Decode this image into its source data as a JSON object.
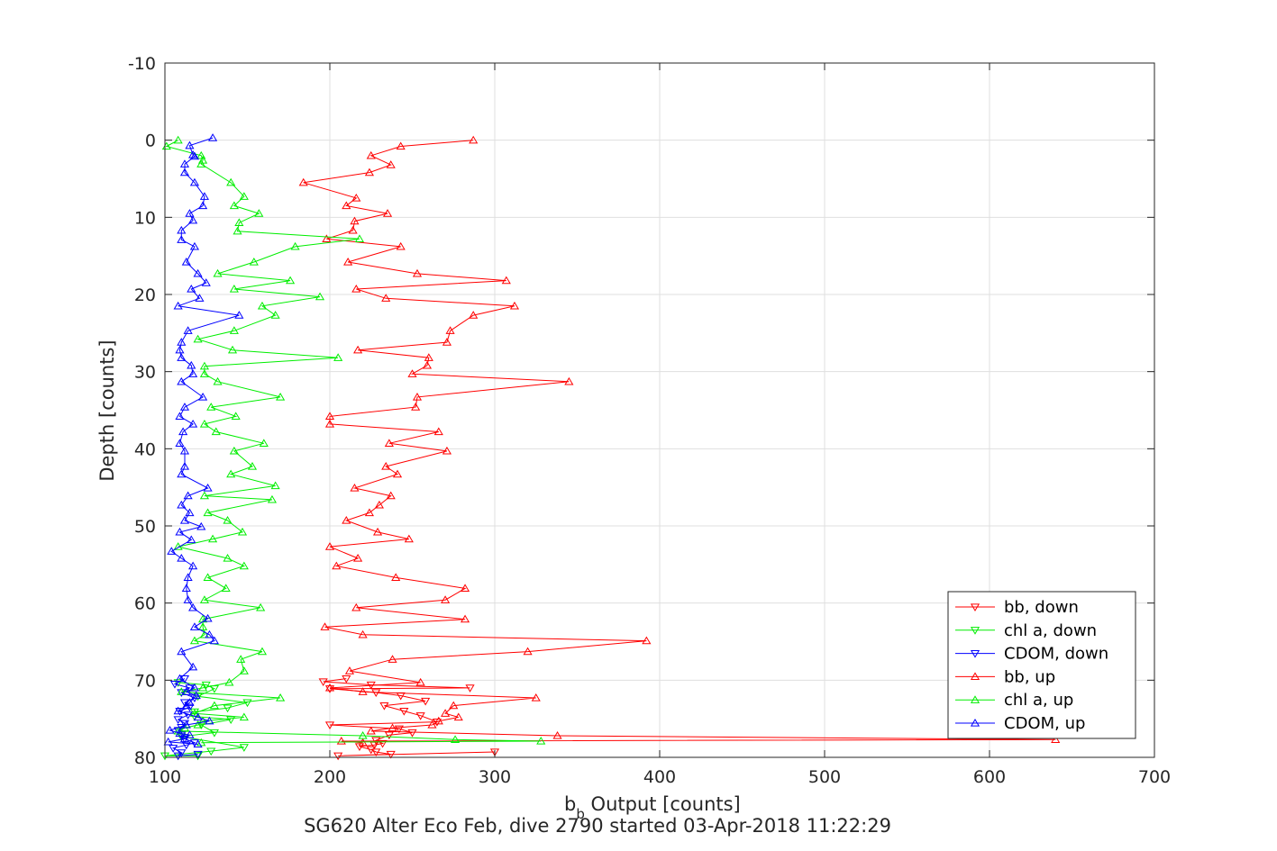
{
  "chart_data": {
    "type": "line",
    "title": "SG620 Alter Eco Feb, dive 2790 started 03-Apr-2018 11:22:29",
    "xlabel_main": "b",
    "xlabel_sub": "b",
    "xlabel_rest": " Output [counts]",
    "ylabel": "Depth [counts]",
    "xlim": [
      100,
      700
    ],
    "ylim": [
      -10,
      80
    ],
    "y_reversed": true,
    "x_ticks": [
      "100",
      "200",
      "300",
      "400",
      "500",
      "600",
      "700"
    ],
    "y_ticks": [
      "-10",
      "0",
      "10",
      "20",
      "30",
      "40",
      "50",
      "60",
      "70",
      "80"
    ],
    "grid": true,
    "legend_position": "bottom-right",
    "series": [
      {
        "name": "bb, down",
        "color": "#ff0000",
        "marker": "triangle-down",
        "points": [
          [
            300,
            79.3
          ],
          [
            205,
            79.8
          ],
          [
            237,
            79.6
          ],
          [
            228,
            79.3
          ],
          [
            225,
            79
          ],
          [
            218,
            78.6
          ],
          [
            227,
            78.4
          ],
          [
            232,
            78.2
          ],
          [
            228,
            77.8
          ],
          [
            236,
            77.1
          ],
          [
            250,
            76.8
          ],
          [
            242,
            76.3
          ],
          [
            200,
            75.8
          ],
          [
            265,
            75.4
          ],
          [
            255,
            74.6
          ],
          [
            245,
            74.0
          ],
          [
            233,
            73.3
          ],
          [
            258,
            72.7
          ],
          [
            243,
            72.0
          ],
          [
            228,
            71.6
          ],
          [
            200,
            71.1
          ],
          [
            285,
            71.0
          ],
          [
            225,
            70.6
          ],
          [
            196,
            70.2
          ],
          [
            210,
            69.8
          ]
        ]
      },
      {
        "name": "chl a, down",
        "color": "#00ee00",
        "marker": "triangle-down",
        "points": [
          [
            120,
            79.8
          ],
          [
            100,
            79.8
          ],
          [
            128,
            79.2
          ],
          [
            148,
            78.7
          ],
          [
            110,
            77.3
          ],
          [
            130,
            76.8
          ],
          [
            122,
            75.8
          ],
          [
            140,
            75.1
          ],
          [
            118,
            74.7
          ],
          [
            118,
            74.1
          ],
          [
            138,
            73.6
          ],
          [
            150,
            72.9
          ],
          [
            120,
            72.1
          ],
          [
            130,
            71.1
          ],
          [
            125,
            70.6
          ],
          [
            108,
            70.3
          ]
        ]
      },
      {
        "name": "CDOM, down",
        "color": "#0000ff",
        "marker": "triangle-down",
        "points": [
          [
            120,
            79.6
          ],
          [
            108,
            79.8
          ],
          [
            110,
            79.4
          ],
          [
            105,
            78.8
          ],
          [
            113,
            78.4
          ],
          [
            118,
            78.1
          ],
          [
            112,
            77.6
          ],
          [
            110,
            77.1
          ],
          [
            108,
            76.5
          ],
          [
            110,
            76.1
          ],
          [
            112,
            75.6
          ],
          [
            108,
            75.1
          ],
          [
            114,
            74.5
          ],
          [
            109,
            74.0
          ],
          [
            115,
            73.5
          ],
          [
            112,
            72.9
          ],
          [
            118,
            72.3
          ],
          [
            110,
            71.6
          ],
          [
            115,
            71.0
          ],
          [
            106,
            70.5
          ],
          [
            112,
            69.8
          ]
        ]
      },
      {
        "name": "bb, up",
        "color": "#ff0000",
        "marker": "triangle-up",
        "points": [
          [
            287,
            0
          ],
          [
            243,
            0.8
          ],
          [
            225,
            2
          ],
          [
            237,
            3.2
          ],
          [
            224,
            4.2
          ],
          [
            184,
            5.5
          ],
          [
            216,
            7.5
          ],
          [
            210,
            8.5
          ],
          [
            235,
            9.5
          ],
          [
            215,
            10.5
          ],
          [
            214,
            11.7
          ],
          [
            198,
            12.8
          ],
          [
            243,
            13.8
          ],
          [
            211,
            15.8
          ],
          [
            253,
            17.3
          ],
          [
            307,
            18.2
          ],
          [
            216,
            19.3
          ],
          [
            234,
            20.5
          ],
          [
            312,
            21.5
          ],
          [
            287,
            22.7
          ],
          [
            273,
            24.7
          ],
          [
            271,
            26.2
          ],
          [
            217,
            27.2
          ],
          [
            260,
            28.2
          ],
          [
            259,
            29.2
          ],
          [
            250,
            30.3
          ],
          [
            345,
            31.3
          ],
          [
            253,
            33.3
          ],
          [
            252,
            34.6
          ],
          [
            200,
            35.8
          ],
          [
            200,
            36.8
          ],
          [
            266,
            37.8
          ],
          [
            236,
            39.3
          ],
          [
            271,
            40.3
          ],
          [
            234,
            42.3
          ],
          [
            241,
            43.3
          ],
          [
            215,
            45.1
          ],
          [
            237,
            46.1
          ],
          [
            230,
            47.3
          ],
          [
            224,
            48.3
          ],
          [
            210,
            49.3
          ],
          [
            229,
            50.8
          ],
          [
            248,
            51.7
          ],
          [
            200,
            52.7
          ],
          [
            217,
            54.2
          ],
          [
            204,
            55.2
          ],
          [
            240,
            56.7
          ],
          [
            282,
            58.1
          ],
          [
            270,
            59.6
          ],
          [
            216,
            60.6
          ],
          [
            282,
            62.1
          ],
          [
            197,
            63.1
          ],
          [
            220,
            64.1
          ],
          [
            392,
            64.9
          ],
          [
            320,
            66.3
          ],
          [
            238,
            67.3
          ],
          [
            212,
            68.8
          ],
          [
            255,
            70.3
          ],
          [
            200,
            71.0
          ],
          [
            220,
            71.5
          ],
          [
            325,
            72.3
          ],
          [
            275,
            73.3
          ],
          [
            270,
            74.3
          ],
          [
            278,
            74.8
          ],
          [
            266,
            75.3
          ],
          [
            262,
            75.8
          ],
          [
            238,
            76.2
          ],
          [
            225,
            76.6
          ],
          [
            338,
            77.2
          ],
          [
            640,
            77.7
          ],
          [
            207,
            77.9
          ],
          [
            220,
            78.1
          ]
        ]
      },
      {
        "name": "chl a, up",
        "color": "#00ee00",
        "marker": "triangle-up",
        "points": [
          [
            108,
            0
          ],
          [
            101,
            0.8
          ],
          [
            122,
            2
          ],
          [
            123,
            2.6
          ],
          [
            122,
            3.1
          ],
          [
            140,
            5.5
          ],
          [
            148,
            7.3
          ],
          [
            142,
            8.5
          ],
          [
            157,
            9.5
          ],
          [
            145,
            10.7
          ],
          [
            144,
            11.8
          ],
          [
            218,
            12.8
          ],
          [
            179,
            13.8
          ],
          [
            154,
            15.8
          ],
          [
            132,
            17.3
          ],
          [
            176,
            18.2
          ],
          [
            142,
            19.3
          ],
          [
            194,
            20.3
          ],
          [
            159,
            21.5
          ],
          [
            167,
            22.7
          ],
          [
            142,
            24.7
          ],
          [
            120,
            25.8
          ],
          [
            141,
            27.2
          ],
          [
            205,
            28.2
          ],
          [
            124,
            29.3
          ],
          [
            124,
            30.3
          ],
          [
            132,
            31.3
          ],
          [
            170,
            33.3
          ],
          [
            128,
            34.6
          ],
          [
            143,
            35.8
          ],
          [
            124,
            36.8
          ],
          [
            131,
            37.8
          ],
          [
            160,
            39.3
          ],
          [
            142,
            40.3
          ],
          [
            153,
            42.3
          ],
          [
            140,
            43.3
          ],
          [
            167,
            44.8
          ],
          [
            124,
            46.1
          ],
          [
            165,
            46.6
          ],
          [
            126,
            48.3
          ],
          [
            138,
            49.3
          ],
          [
            147,
            50.8
          ],
          [
            129,
            51.7
          ],
          [
            108,
            52.7
          ],
          [
            138,
            54.2
          ],
          [
            148,
            55.2
          ],
          [
            126,
            56.7
          ],
          [
            137,
            58.1
          ],
          [
            124,
            59.6
          ],
          [
            158,
            60.6
          ],
          [
            123,
            62.1
          ],
          [
            123,
            63.1
          ],
          [
            124,
            64.1
          ],
          [
            118,
            64.9
          ],
          [
            159,
            66.3
          ],
          [
            146,
            67.3
          ],
          [
            148,
            68.8
          ],
          [
            139,
            70.3
          ],
          [
            123,
            71.0
          ],
          [
            110,
            71.5
          ],
          [
            170,
            72.3
          ],
          [
            130,
            73.3
          ],
          [
            118,
            74.3
          ],
          [
            148,
            74.8
          ],
          [
            123,
            75.3
          ],
          [
            120,
            75.8
          ],
          [
            112,
            76.2
          ],
          [
            108,
            76.6
          ],
          [
            220,
            77.2
          ],
          [
            276,
            77.7
          ],
          [
            328,
            77.9
          ],
          [
            122,
            78.1
          ]
        ]
      },
      {
        "name": "CDOM, up",
        "color": "#0000ff",
        "marker": "triangle-up",
        "points": [
          [
            129,
            -0.3
          ],
          [
            115,
            0.7
          ],
          [
            117,
            1.9
          ],
          [
            118,
            2.1
          ],
          [
            112,
            3.1
          ],
          [
            112,
            4.2
          ],
          [
            118,
            5.5
          ],
          [
            124,
            7.3
          ],
          [
            123,
            8.5
          ],
          [
            115,
            9.5
          ],
          [
            117,
            10.4
          ],
          [
            110,
            11.7
          ],
          [
            110,
            12.9
          ],
          [
            118,
            13.8
          ],
          [
            113,
            15.8
          ],
          [
            120,
            17.3
          ],
          [
            125,
            18.5
          ],
          [
            116,
            19.3
          ],
          [
            121,
            20.5
          ],
          [
            108,
            21.5
          ],
          [
            145,
            22.7
          ],
          [
            114,
            24.7
          ],
          [
            110,
            26.2
          ],
          [
            109,
            27.2
          ],
          [
            110,
            28.2
          ],
          [
            116,
            29.2
          ],
          [
            117,
            30.3
          ],
          [
            110,
            31.3
          ],
          [
            123,
            33.3
          ],
          [
            112,
            34.6
          ],
          [
            109,
            35.8
          ],
          [
            117,
            36.8
          ],
          [
            111,
            37.8
          ],
          [
            109,
            39.3
          ],
          [
            112,
            40.3
          ],
          [
            112,
            42.3
          ],
          [
            110,
            43.3
          ],
          [
            126,
            45.1
          ],
          [
            114,
            46.1
          ],
          [
            110,
            47.3
          ],
          [
            115,
            48.3
          ],
          [
            112,
            49.3
          ],
          [
            122,
            50.1
          ],
          [
            109,
            50.8
          ],
          [
            116,
            51.8
          ],
          [
            104,
            53.3
          ],
          [
            110,
            54.2
          ],
          [
            117,
            55.2
          ],
          [
            114,
            56.7
          ],
          [
            113,
            58.1
          ],
          [
            114,
            59.6
          ],
          [
            117,
            60.6
          ],
          [
            126,
            62.0
          ],
          [
            118,
            63.1
          ],
          [
            127,
            64.1
          ],
          [
            130,
            64.9
          ],
          [
            110,
            66.3
          ],
          [
            117,
            68.3
          ],
          [
            109,
            69.8
          ],
          [
            118,
            71.0
          ],
          [
            113,
            71.5
          ],
          [
            119,
            72.0
          ],
          [
            115,
            72.9
          ],
          [
            113,
            73.3
          ],
          [
            108,
            74.0
          ],
          [
            120,
            74.8
          ],
          [
            127,
            75.3
          ],
          [
            113,
            75.8
          ],
          [
            103,
            76.5
          ],
          [
            109,
            76.9
          ],
          [
            115,
            77.1
          ],
          [
            112,
            77.6
          ],
          [
            102,
            78.0
          ],
          [
            120,
            78.3
          ]
        ]
      }
    ]
  }
}
